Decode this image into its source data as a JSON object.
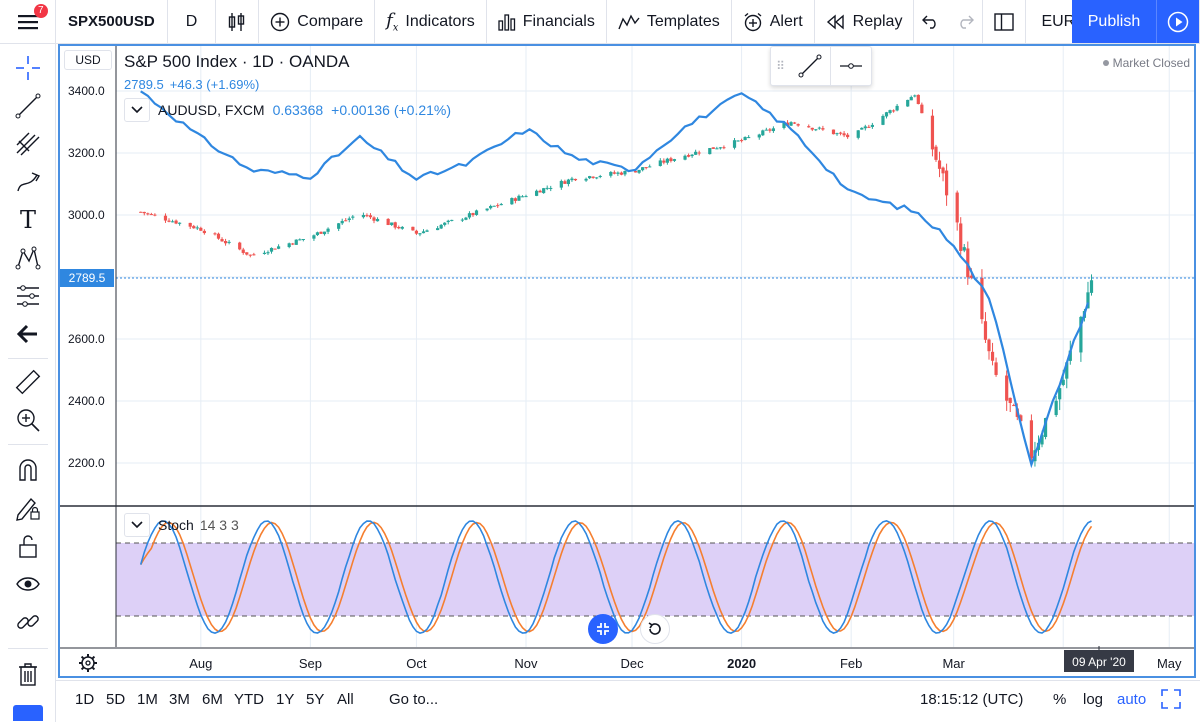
{
  "toolbar": {
    "notifications": "7",
    "symbol": "SPX500USD",
    "interval": "D",
    "compare": "Compare",
    "indicators": "Indicators",
    "financials": "Financials",
    "templates": "Templates",
    "alert": "Alert",
    "replay": "Replay",
    "currency_pair": "EUR/aud",
    "publish": "Publish"
  },
  "chart": {
    "currency": "USD",
    "title": "S&P 500 Index · 1D · OANDA",
    "last_value": "2789.5",
    "change": "+46.3 (+1.69%)",
    "market_status": "Market Closed",
    "overlay_symbol": "AUDUSD, FXCM",
    "overlay_value": "0.63368",
    "overlay_change": "+0.00136 (+0.21%)",
    "price_label": "2789.5",
    "indicator_name": "Stoch",
    "indicator_params": "14 3 3",
    "crosshair_date": "09 Apr '20"
  },
  "bottom": {
    "ranges": [
      "1D",
      "5D",
      "1M",
      "3M",
      "6M",
      "YTD",
      "1Y",
      "5Y",
      "All"
    ],
    "goto": "Go to...",
    "clock": "18:15:12 (UTC)",
    "percent": "%",
    "log": "log",
    "auto": "auto"
  },
  "colors": {
    "up": "#26a69a",
    "down": "#ef5350",
    "compare_line": "#2f87e0",
    "stoch_k": "#2f87e0",
    "stoch_d": "#f57f30",
    "stoch_band": "#ddd0f7",
    "accent": "#2962ff"
  },
  "chart_data": {
    "type": "candlestick",
    "title": "S&P 500 Index · 1D · OANDA",
    "y_ticks": [
      "3400.0",
      "3200.0",
      "3000.0",
      "2800.0",
      "2600.0",
      "2400.0",
      "2200.0"
    ],
    "ylim": [
      2160,
      3450
    ],
    "x_ticks": [
      "Aug",
      "Sep",
      "Oct",
      "Nov",
      "Dec",
      "2020",
      "Feb",
      "Mar",
      "Apr",
      "May"
    ],
    "approx_close_by_month": [
      {
        "date": "2019-07-15",
        "spx": 3010,
        "audusd": 0.703
      },
      {
        "date": "2019-08-01",
        "spx": 2955,
        "audusd": 0.687
      },
      {
        "date": "2019-08-15",
        "spx": 2870,
        "audusd": 0.676
      },
      {
        "date": "2019-09-01",
        "spx": 2930,
        "audusd": 0.674
      },
      {
        "date": "2019-09-15",
        "spx": 3005,
        "audusd": 0.687
      },
      {
        "date": "2019-10-01",
        "spx": 2940,
        "audusd": 0.673
      },
      {
        "date": "2019-10-15",
        "spx": 2995,
        "audusd": 0.678
      },
      {
        "date": "2019-11-01",
        "spx": 3065,
        "audusd": 0.69
      },
      {
        "date": "2019-11-15",
        "spx": 3120,
        "audusd": 0.68
      },
      {
        "date": "2019-12-01",
        "spx": 3140,
        "audusd": 0.676
      },
      {
        "date": "2019-12-15",
        "spx": 3190,
        "audusd": 0.69
      },
      {
        "date": "2020-01-01",
        "spx": 3240,
        "audusd": 0.702
      },
      {
        "date": "2020-01-15",
        "spx": 3300,
        "audusd": 0.69
      },
      {
        "date": "2020-02-01",
        "spx": 3250,
        "audusd": 0.668
      },
      {
        "date": "2020-02-19",
        "spx": 3390,
        "audusd": 0.662
      },
      {
        "date": "2020-03-01",
        "spx": 3010,
        "audusd": 0.651
      },
      {
        "date": "2020-03-12",
        "spx": 2500,
        "audusd": 0.63
      },
      {
        "date": "2020-03-23",
        "spx": 2230,
        "audusd": 0.575
      },
      {
        "date": "2020-04-01",
        "spx": 2470,
        "audusd": 0.607
      },
      {
        "date": "2020-04-09",
        "spx": 2789.5,
        "audusd": 0.634
      }
    ],
    "stochastic": {
      "name": "Stoch",
      "params": [
        14,
        3,
        3
      ],
      "bands": [
        20,
        80
      ]
    }
  }
}
